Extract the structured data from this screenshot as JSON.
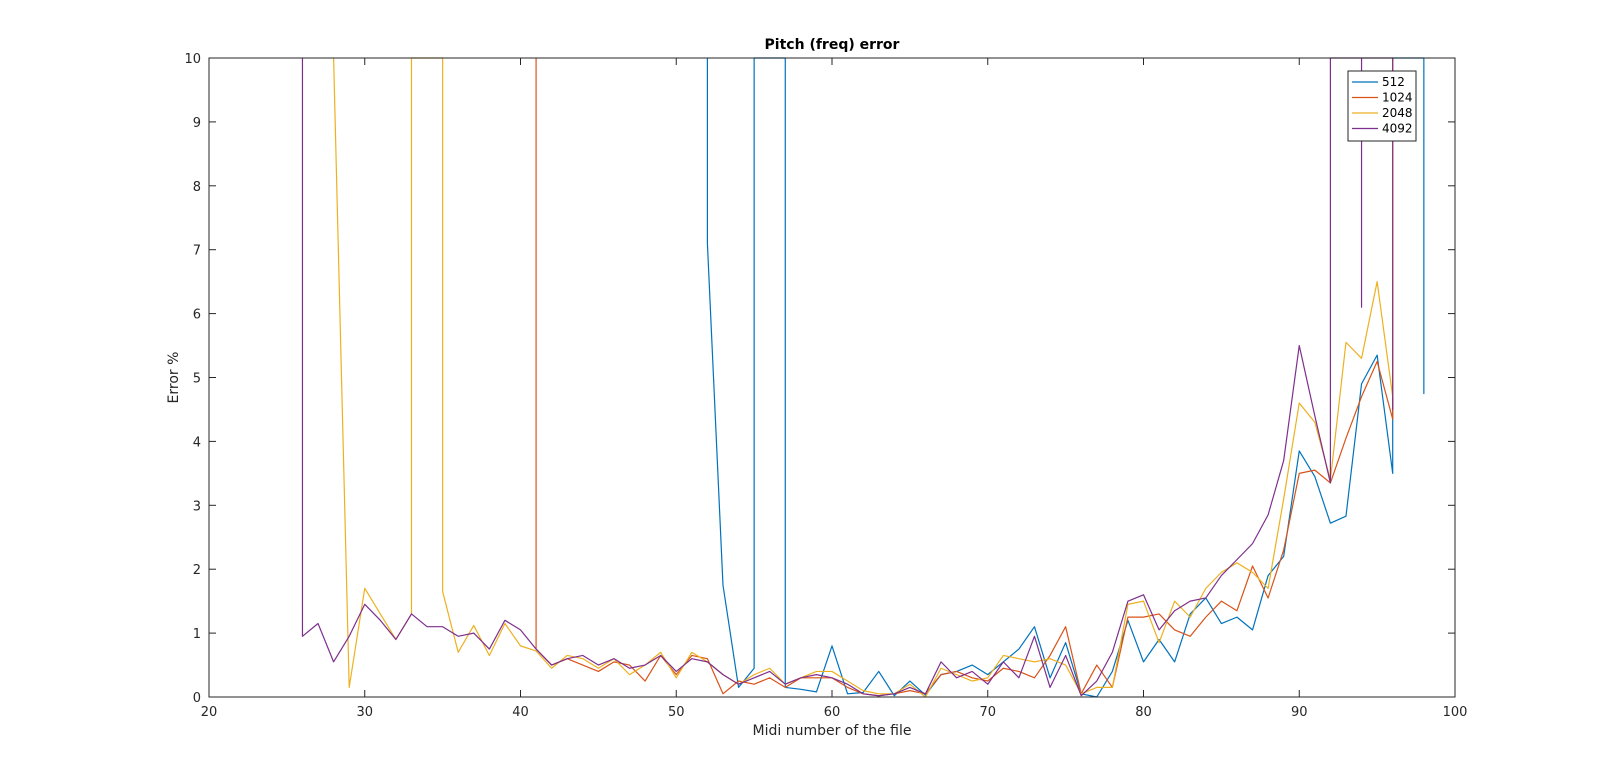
{
  "chart_data": {
    "type": "line",
    "title": "Pitch (freq) error",
    "xlabel": "Midi number of the file",
    "ylabel": "Error %",
    "xlim": [
      20,
      100
    ],
    "ylim": [
      0,
      10
    ],
    "xticks": [
      20,
      30,
      40,
      50,
      60,
      70,
      80,
      90,
      100
    ],
    "yticks": [
      0,
      1,
      2,
      3,
      4,
      5,
      6,
      7,
      8,
      9,
      10
    ],
    "grid": false,
    "legend_position": "top-right",
    "series": [
      {
        "name": "512",
        "color": "#0072BD",
        "points": [
          [
            52,
            10
          ],
          [
            52,
            7.1
          ],
          [
            53,
            1.75
          ],
          [
            54,
            0.15
          ],
          [
            55,
            0.45
          ],
          [
            55,
            10
          ],
          [
            56,
            10
          ],
          [
            57,
            10
          ],
          [
            57,
            0.15
          ],
          [
            58,
            0.12
          ],
          [
            59,
            0.08
          ],
          [
            60,
            0.8
          ],
          [
            61,
            0.05
          ],
          [
            62,
            0.07
          ],
          [
            63,
            0.4
          ],
          [
            64,
            0.02
          ],
          [
            65,
            0.25
          ],
          [
            66,
            0.03
          ],
          [
            67,
            0.35
          ],
          [
            68,
            0.4
          ],
          [
            69,
            0.5
          ],
          [
            70,
            0.35
          ],
          [
            71,
            0.55
          ],
          [
            72,
            0.75
          ],
          [
            73,
            1.1
          ],
          [
            74,
            0.3
          ],
          [
            75,
            0.85
          ],
          [
            76,
            0.05
          ],
          [
            77,
            0.0
          ],
          [
            78,
            0.4
          ],
          [
            79,
            1.2
          ],
          [
            80,
            0.55
          ],
          [
            81,
            0.9
          ],
          [
            82,
            0.55
          ],
          [
            83,
            1.3
          ],
          [
            84,
            1.55
          ],
          [
            85,
            1.15
          ],
          [
            86,
            1.25
          ],
          [
            87,
            1.05
          ],
          [
            88,
            1.9
          ],
          [
            89,
            2.2
          ],
          [
            90,
            3.85
          ],
          [
            91,
            3.45
          ],
          [
            92,
            2.72
          ],
          [
            93,
            2.83
          ],
          [
            94,
            4.9
          ],
          [
            95,
            5.35
          ],
          [
            96,
            3.5
          ],
          [
            96,
            10
          ],
          [
            97,
            10
          ],
          [
            98,
            10
          ],
          [
            98,
            4.75
          ],
          [
            98,
            10
          ]
        ]
      },
      {
        "name": "1024",
        "color": "#D95319",
        "points": [
          [
            41,
            10
          ],
          [
            41,
            0.75
          ],
          [
            42,
            0.5
          ],
          [
            43,
            0.6
          ],
          [
            44,
            0.5
          ],
          [
            45,
            0.4
          ],
          [
            46,
            0.55
          ],
          [
            47,
            0.5
          ],
          [
            48,
            0.25
          ],
          [
            49,
            0.65
          ],
          [
            50,
            0.35
          ],
          [
            51,
            0.65
          ],
          [
            52,
            0.6
          ],
          [
            53,
            0.05
          ],
          [
            54,
            0.25
          ],
          [
            55,
            0.2
          ],
          [
            56,
            0.3
          ],
          [
            57,
            0.15
          ],
          [
            58,
            0.3
          ],
          [
            59,
            0.3
          ],
          [
            60,
            0.3
          ],
          [
            61,
            0.15
          ],
          [
            62,
            0.05
          ],
          [
            63,
            0.02
          ],
          [
            64,
            0.05
          ],
          [
            65,
            0.1
          ],
          [
            66,
            0.05
          ],
          [
            67,
            0.35
          ],
          [
            68,
            0.4
          ],
          [
            69,
            0.3
          ],
          [
            70,
            0.25
          ],
          [
            71,
            0.45
          ],
          [
            72,
            0.4
          ],
          [
            73,
            0.3
          ],
          [
            74,
            0.65
          ],
          [
            75,
            1.1
          ],
          [
            76,
            0.05
          ],
          [
            77,
            0.5
          ],
          [
            78,
            0.15
          ],
          [
            79,
            1.25
          ],
          [
            80,
            1.25
          ],
          [
            81,
            1.3
          ],
          [
            82,
            1.05
          ],
          [
            83,
            0.95
          ],
          [
            84,
            1.25
          ],
          [
            85,
            1.5
          ],
          [
            86,
            1.35
          ],
          [
            87,
            2.05
          ],
          [
            88,
            1.55
          ],
          [
            89,
            2.3
          ],
          [
            90,
            3.5
          ],
          [
            91,
            3.55
          ],
          [
            92,
            3.35
          ],
          [
            93,
            4.05
          ],
          [
            94,
            4.7
          ],
          [
            95,
            5.25
          ],
          [
            96,
            4.35
          ],
          [
            96,
            10
          ]
        ]
      },
      {
        "name": "2048",
        "color": "#EDB120",
        "points": [
          [
            28,
            10
          ],
          [
            29,
            0.15
          ],
          [
            30,
            1.7
          ],
          [
            31,
            1.3
          ],
          [
            32,
            0.9
          ],
          [
            33,
            1.3
          ],
          [
            33,
            10
          ],
          [
            34,
            10
          ],
          [
            35,
            10
          ],
          [
            35,
            1.65
          ],
          [
            36,
            0.7
          ],
          [
            37,
            1.12
          ],
          [
            38,
            0.65
          ],
          [
            39,
            1.15
          ],
          [
            40,
            0.8
          ],
          [
            41,
            0.72
          ],
          [
            42,
            0.45
          ],
          [
            43,
            0.65
          ],
          [
            44,
            0.6
          ],
          [
            45,
            0.45
          ],
          [
            46,
            0.6
          ],
          [
            47,
            0.35
          ],
          [
            48,
            0.5
          ],
          [
            49,
            0.7
          ],
          [
            50,
            0.3
          ],
          [
            51,
            0.7
          ],
          [
            52,
            0.55
          ],
          [
            53,
            0.35
          ],
          [
            54,
            0.2
          ],
          [
            55,
            0.35
          ],
          [
            56,
            0.45
          ],
          [
            57,
            0.2
          ],
          [
            58,
            0.3
          ],
          [
            59,
            0.4
          ],
          [
            60,
            0.4
          ],
          [
            61,
            0.25
          ],
          [
            62,
            0.1
          ],
          [
            63,
            0.05
          ],
          [
            64,
            0.05
          ],
          [
            65,
            0.2
          ],
          [
            66,
            0.0
          ],
          [
            67,
            0.45
          ],
          [
            68,
            0.35
          ],
          [
            69,
            0.25
          ],
          [
            70,
            0.3
          ],
          [
            71,
            0.65
          ],
          [
            72,
            0.6
          ],
          [
            73,
            0.55
          ],
          [
            74,
            0.6
          ],
          [
            75,
            0.5
          ],
          [
            76,
            0.05
          ],
          [
            77,
            0.15
          ],
          [
            78,
            0.15
          ],
          [
            79,
            1.45
          ],
          [
            80,
            1.5
          ],
          [
            81,
            0.85
          ],
          [
            82,
            1.5
          ],
          [
            83,
            1.25
          ],
          [
            84,
            1.7
          ],
          [
            85,
            1.95
          ],
          [
            86,
            2.1
          ],
          [
            87,
            1.95
          ],
          [
            88,
            1.7
          ],
          [
            89,
            3.1
          ],
          [
            90,
            4.6
          ],
          [
            91,
            4.3
          ],
          [
            92,
            3.4
          ],
          [
            93,
            5.55
          ],
          [
            94,
            5.3
          ],
          [
            95,
            6.5
          ],
          [
            96,
            4.7
          ],
          [
            96,
            10
          ]
        ]
      },
      {
        "name": "4092",
        "color": "#7E2F8E",
        "points": [
          [
            26,
            10
          ],
          [
            26,
            0.95
          ],
          [
            27,
            1.15
          ],
          [
            28,
            0.55
          ],
          [
            29,
            0.95
          ],
          [
            30,
            1.45
          ],
          [
            31,
            1.2
          ],
          [
            32,
            0.9
          ],
          [
            33,
            1.3
          ],
          [
            34,
            1.1
          ],
          [
            35,
            1.1
          ],
          [
            36,
            0.95
          ],
          [
            37,
            1.0
          ],
          [
            38,
            0.75
          ],
          [
            39,
            1.2
          ],
          [
            40,
            1.05
          ],
          [
            41,
            0.75
          ],
          [
            42,
            0.5
          ],
          [
            43,
            0.6
          ],
          [
            44,
            0.65
          ],
          [
            45,
            0.5
          ],
          [
            46,
            0.6
          ],
          [
            47,
            0.45
          ],
          [
            48,
            0.5
          ],
          [
            49,
            0.65
          ],
          [
            50,
            0.4
          ],
          [
            51,
            0.6
          ],
          [
            52,
            0.55
          ],
          [
            53,
            0.35
          ],
          [
            54,
            0.2
          ],
          [
            55,
            0.3
          ],
          [
            56,
            0.4
          ],
          [
            57,
            0.2
          ],
          [
            58,
            0.3
          ],
          [
            59,
            0.35
          ],
          [
            60,
            0.3
          ],
          [
            61,
            0.2
          ],
          [
            62,
            0.05
          ],
          [
            63,
            0.02
          ],
          [
            64,
            0.05
          ],
          [
            65,
            0.15
          ],
          [
            66,
            0.05
          ],
          [
            67,
            0.55
          ],
          [
            68,
            0.3
          ],
          [
            69,
            0.4
          ],
          [
            70,
            0.2
          ],
          [
            71,
            0.55
          ],
          [
            72,
            0.3
          ],
          [
            73,
            0.95
          ],
          [
            74,
            0.15
          ],
          [
            75,
            0.65
          ],
          [
            76,
            0.02
          ],
          [
            77,
            0.25
          ],
          [
            78,
            0.7
          ],
          [
            79,
            1.5
          ],
          [
            80,
            1.6
          ],
          [
            81,
            1.05
          ],
          [
            82,
            1.35
          ],
          [
            83,
            1.5
          ],
          [
            84,
            1.55
          ],
          [
            85,
            1.9
          ],
          [
            86,
            2.15
          ],
          [
            87,
            2.4
          ],
          [
            88,
            2.85
          ],
          [
            89,
            3.7
          ],
          [
            90,
            5.5
          ],
          [
            91,
            4.4
          ],
          [
            92,
            3.35
          ],
          [
            92,
            10
          ],
          [
            93,
            10
          ],
          [
            94,
            10
          ],
          [
            94,
            6.1
          ],
          [
            94,
            10
          ],
          [
            95,
            10
          ],
          [
            96,
            10
          ],
          [
            96,
            4.5
          ],
          [
            96,
            10
          ]
        ]
      }
    ]
  }
}
